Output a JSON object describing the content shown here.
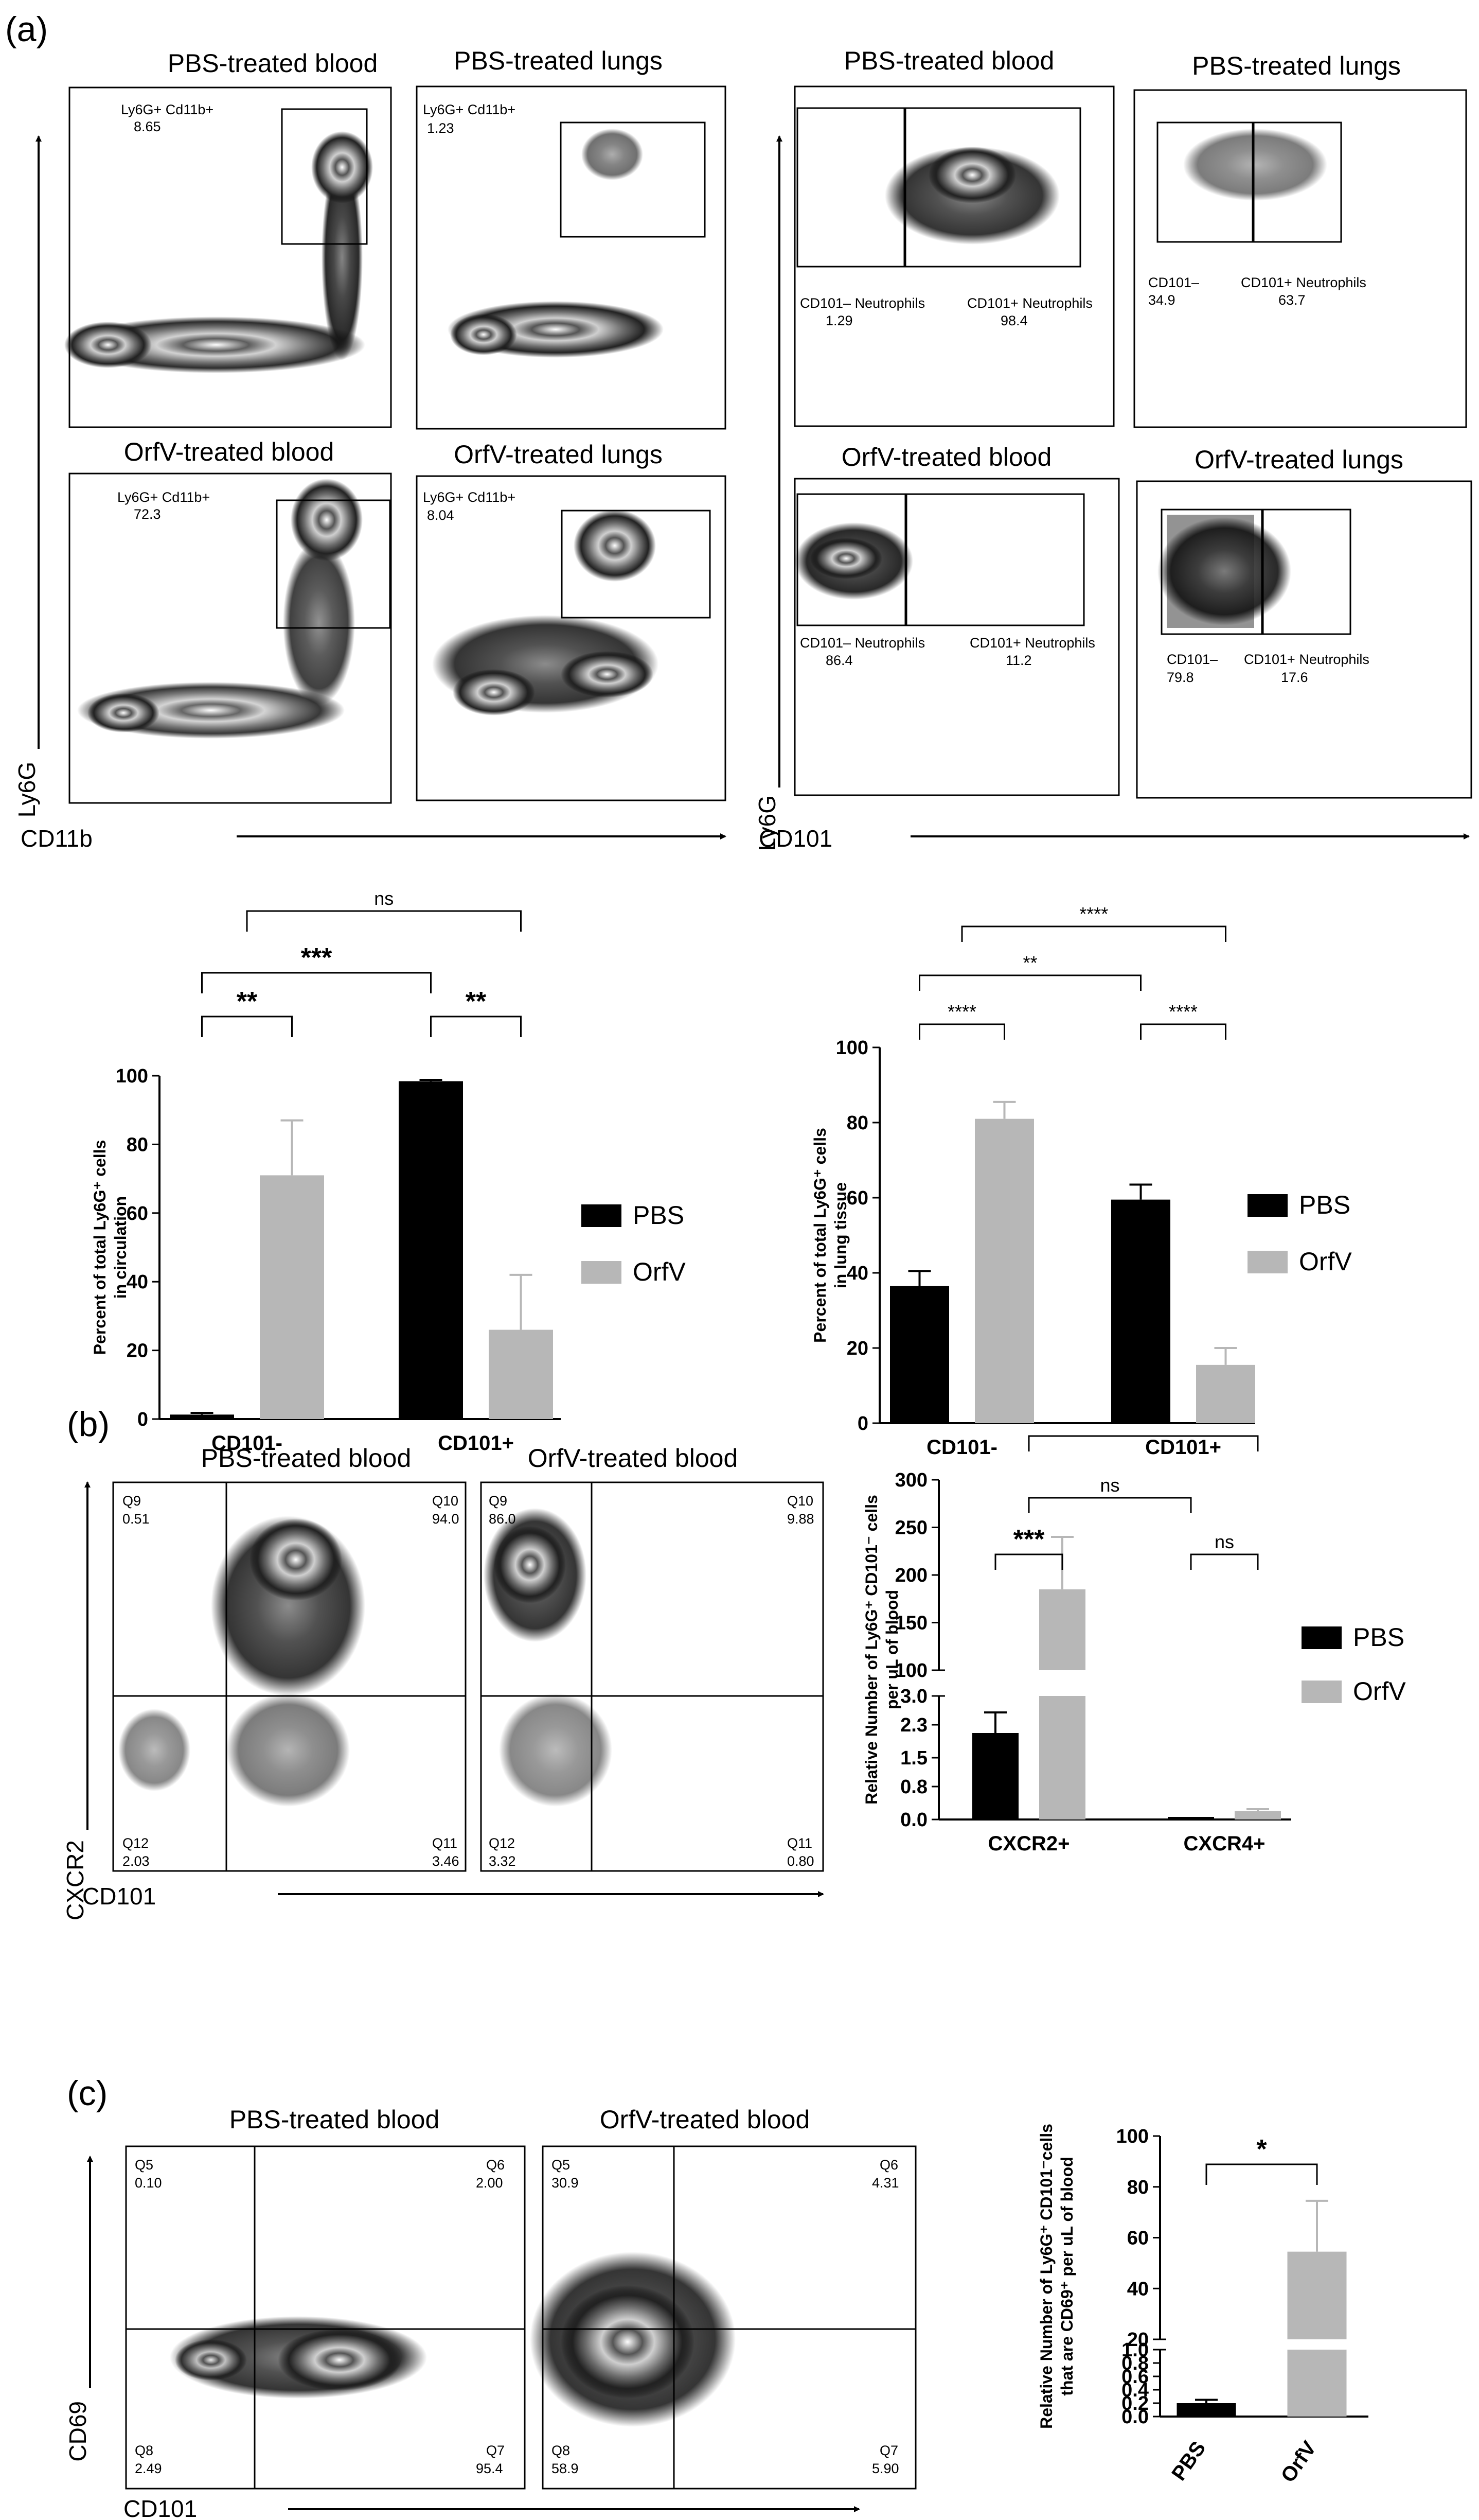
{
  "panels": {
    "a": "(a)",
    "b": "(b)",
    "c": "(c)"
  },
  "flow": {
    "a_left": {
      "y_axis": "Ly6G",
      "x_axis": "CD11b",
      "plots": [
        {
          "title": "PBS-treated blood",
          "gate_label": "Ly6G+ Cd11b+",
          "gate_value": "8.65"
        },
        {
          "title": "PBS-treated lungs",
          "gate_label": "Ly6G+ Cd11b+",
          "gate_value": "1.23"
        },
        {
          "title": "OrfV-treated blood",
          "gate_label": "Ly6G+ Cd11b+",
          "gate_value": "72.3"
        },
        {
          "title": "OrfV-treated lungs",
          "gate_label": "Ly6G+ Cd11b+",
          "gate_value": "8.04"
        }
      ]
    },
    "a_right": {
      "y_axis": "Ly6G",
      "x_axis": "CD101",
      "plots": [
        {
          "title": "PBS-treated blood",
          "neg_label": "CD101– Neutrophils",
          "neg_value": "1.29",
          "pos_label": "CD101+ Neutrophils",
          "pos_value": "98.4"
        },
        {
          "title": "PBS-treated lungs",
          "neg_label": "CD101–",
          "neg_value": "34.9",
          "pos_label": "CD101+ Neutrophils",
          "pos_value": "63.7"
        },
        {
          "title": "OrfV-treated blood",
          "neg_label": "CD101– Neutrophils",
          "neg_value": "86.4",
          "pos_label": "CD101+ Neutrophils",
          "pos_value": "11.2"
        },
        {
          "title": "OrfV-treated lungs",
          "neg_label": "CD101–",
          "neg_value": "79.8",
          "pos_label": "CD101+ Neutrophils",
          "pos_value": "17.6"
        }
      ]
    },
    "b": {
      "y_axis": "CXCR2",
      "x_axis": "CD101",
      "plots": [
        {
          "title": "PBS-treated blood",
          "quadrants": [
            {
              "name": "Q9",
              "value": "0.51"
            },
            {
              "name": "Q10",
              "value": "94.0"
            },
            {
              "name": "Q12",
              "value": "2.03"
            },
            {
              "name": "Q11",
              "value": "3.46"
            }
          ]
        },
        {
          "title": "OrfV-treated blood",
          "quadrants": [
            {
              "name": "Q9",
              "value": "86.0"
            },
            {
              "name": "Q10",
              "value": "9.88"
            },
            {
              "name": "Q12",
              "value": "3.32"
            },
            {
              "name": "Q11",
              "value": "0.80"
            }
          ]
        }
      ]
    },
    "c": {
      "y_axis": "CD69",
      "x_axis": "CD101",
      "plots": [
        {
          "title": "PBS-treated blood",
          "quadrants": [
            {
              "name": "Q5",
              "value": "0.10"
            },
            {
              "name": "Q6",
              "value": "2.00"
            },
            {
              "name": "Q8",
              "value": "2.49"
            },
            {
              "name": "Q7",
              "value": "95.4"
            }
          ]
        },
        {
          "title": "OrfV-treated blood",
          "quadrants": [
            {
              "name": "Q5",
              "value": "30.9"
            },
            {
              "name": "Q6",
              "value": "4.31"
            },
            {
              "name": "Q8",
              "value": "58.9"
            },
            {
              "name": "Q7",
              "value": "5.90"
            }
          ]
        }
      ]
    }
  },
  "colors": {
    "PBS": "#000000",
    "OrfV": "#b7b7b7"
  },
  "chart_data": [
    {
      "type": "bar",
      "ylabel_line1": "Percent of total Ly6G⁺ cells",
      "ylabel_line2": "in circulation",
      "categories": [
        "CD101-",
        "CD101+"
      ],
      "series": [
        {
          "name": "PBS",
          "values": [
            1.3,
            98.4
          ],
          "errors": [
            0.5,
            0.4
          ]
        },
        {
          "name": "OrfV",
          "values": [
            71,
            26
          ],
          "errors": [
            16,
            16
          ]
        }
      ],
      "ylim": [
        0,
        100
      ],
      "yticks": [
        "0",
        "20",
        "40",
        "60",
        "80",
        "100"
      ],
      "legend": "right",
      "significance": [
        "**",
        "**",
        "***",
        "ns"
      ]
    },
    {
      "type": "bar",
      "ylabel_line1": "Percent of total Ly6G⁺ cells",
      "ylabel_line2": "in lung tissue",
      "categories": [
        "CD101-",
        "CD101+"
      ],
      "series": [
        {
          "name": "PBS",
          "values": [
            36.5,
            59.5
          ],
          "errors": [
            4,
            4
          ]
        },
        {
          "name": "OrfV",
          "values": [
            81,
            15.5
          ],
          "errors": [
            4.5,
            4.5
          ]
        }
      ],
      "ylim": [
        0,
        100
      ],
      "yticks": [
        "0",
        "20",
        "40",
        "60",
        "80",
        "100"
      ],
      "legend": "right",
      "significance": [
        "****",
        "****",
        "**",
        "****"
      ]
    },
    {
      "type": "bar",
      "ylabel_line1": "Relative Number of Ly6G⁺ CD101⁻ cells",
      "ylabel_line2": "per uL of blood",
      "categories": [
        "CXCR2+",
        "CXCR4+"
      ],
      "series": [
        {
          "name": "PBS",
          "values": [
            2.1,
            0.03
          ],
          "errors": [
            0.5,
            0
          ]
        },
        {
          "name": "OrfV",
          "values": [
            185,
            0.2
          ],
          "errors": [
            55,
            0.05
          ]
        }
      ],
      "axis_break": {
        "lower": [
          0,
          3.0
        ],
        "upper": [
          100,
          300
        ]
      },
      "yticks_lower": [
        "0.0",
        "0.8",
        "1.5",
        "2.3",
        "3.0"
      ],
      "yticks_upper": [
        "100",
        "150",
        "200",
        "250",
        "300"
      ],
      "legend": "right",
      "significance": [
        "***",
        "ns",
        "ns",
        "**"
      ]
    },
    {
      "type": "bar",
      "ylabel_line1": "Relative Number of Ly6G⁺ CD101⁻cells",
      "ylabel_line2": "that are CD69⁺ per uL of blood",
      "categories": [
        "PBS",
        "OrfV"
      ],
      "series": [
        {
          "name": "",
          "values": [
            0.2,
            54.5
          ],
          "errors": [
            0.05,
            20
          ]
        }
      ],
      "axis_break": {
        "lower": [
          0,
          1.0
        ],
        "upper": [
          20,
          100
        ]
      },
      "yticks_lower": [
        "0.0",
        "0.2",
        "0.4",
        "0.6",
        "0.8",
        "1.0"
      ],
      "yticks_upper": [
        "20",
        "40",
        "60",
        "80",
        "100"
      ],
      "legend": "none",
      "significance": [
        "*"
      ]
    }
  ]
}
